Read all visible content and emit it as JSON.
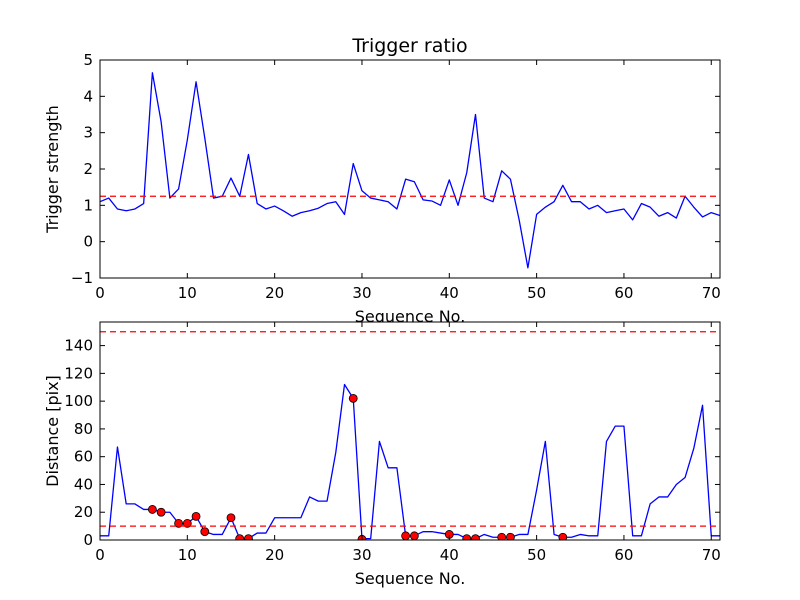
{
  "chart_data": [
    {
      "type": "line",
      "title": "Trigger ratio",
      "xlabel": "Sequence No.",
      "ylabel": "Trigger strength",
      "xlim": [
        0,
        71
      ],
      "ylim": [
        -1,
        5
      ],
      "xticks": [
        0,
        10,
        20,
        30,
        40,
        50,
        60,
        70
      ],
      "yticks": [
        -1,
        0,
        1,
        2,
        3,
        4,
        5
      ],
      "grid": false,
      "series": [
        {
          "color": "#0000ff",
          "style": "solid",
          "x": [
            0,
            1,
            2,
            3,
            4,
            5,
            6,
            7,
            8,
            9,
            10,
            11,
            12,
            13,
            14,
            15,
            16,
            17,
            18,
            19,
            20,
            21,
            22,
            23,
            24,
            25,
            26,
            27,
            28,
            29,
            30,
            31,
            32,
            33,
            34,
            35,
            36,
            37,
            38,
            39,
            40,
            41,
            42,
            43,
            44,
            45,
            46,
            47,
            48,
            49,
            50,
            51,
            52,
            53,
            54,
            55,
            56,
            57,
            58,
            59,
            60,
            61,
            62,
            63,
            64,
            65,
            66,
            67,
            68,
            69,
            70,
            71
          ],
          "values": [
            1.1,
            1.2,
            0.9,
            0.85,
            0.9,
            1.05,
            4.65,
            3.3,
            1.2,
            1.45,
            2.8,
            4.4,
            2.85,
            1.2,
            1.25,
            1.75,
            1.25,
            2.4,
            1.05,
            0.9,
            0.98,
            0.85,
            0.7,
            0.8,
            0.85,
            0.92,
            1.05,
            1.1,
            0.75,
            2.15,
            1.4,
            1.2,
            1.15,
            1.1,
            0.9,
            1.72,
            1.65,
            1.15,
            1.12,
            1.0,
            1.7,
            1.0,
            1.9,
            3.5,
            1.2,
            1.1,
            1.95,
            1.72,
            0.6,
            -0.72,
            0.75,
            0.95,
            1.1,
            1.55,
            1.1,
            1.1,
            0.9,
            1.0,
            0.8,
            0.85,
            0.9,
            0.6,
            1.05,
            0.95,
            0.7,
            0.8,
            0.65,
            1.25,
            0.95,
            0.68,
            0.8,
            0.72
          ]
        },
        {
          "color": "#ff0000",
          "style": "dashed",
          "x": [
            0,
            71
          ],
          "values": [
            1.25,
            1.25
          ]
        }
      ]
    },
    {
      "type": "line",
      "title": "",
      "xlabel": "Sequence No.",
      "ylabel": "Distance [pix]",
      "xlim": [
        0,
        71
      ],
      "ylim": [
        0,
        157
      ],
      "xticks": [
        0,
        10,
        20,
        30,
        40,
        50,
        60,
        70
      ],
      "yticks": [
        0,
        20,
        40,
        60,
        80,
        100,
        120,
        140
      ],
      "grid": false,
      "series": [
        {
          "color": "#0000ff",
          "style": "solid",
          "x": [
            0,
            1,
            2,
            3,
            4,
            5,
            6,
            7,
            8,
            9,
            10,
            11,
            12,
            13,
            14,
            15,
            16,
            17,
            18,
            19,
            20,
            21,
            22,
            23,
            24,
            25,
            26,
            27,
            28,
            29,
            30,
            31,
            32,
            33,
            34,
            35,
            36,
            37,
            38,
            39,
            40,
            41,
            42,
            43,
            44,
            45,
            46,
            47,
            48,
            49,
            50,
            51,
            52,
            53,
            54,
            55,
            56,
            57,
            58,
            59,
            60,
            61,
            62,
            63,
            64,
            65,
            66,
            67,
            68,
            69,
            70,
            71
          ],
          "values": [
            3,
            3,
            67,
            26,
            26,
            22,
            22,
            20,
            20,
            12,
            12,
            17,
            6,
            4,
            4,
            16,
            1,
            1,
            5,
            5,
            16,
            16,
            16,
            16,
            31,
            28,
            28,
            63,
            112,
            102,
            1,
            1,
            71,
            52,
            52,
            3,
            3,
            6,
            6,
            5,
            4,
            4,
            1,
            1,
            4,
            2,
            2,
            2,
            4,
            4,
            36,
            71,
            4,
            2,
            2,
            4,
            3,
            3,
            71,
            82,
            82,
            3,
            3,
            26,
            31,
            31,
            40,
            45,
            66,
            97,
            3,
            3
          ]
        },
        {
          "color": "#ff0000",
          "style": "markers",
          "x": [
            6,
            7,
            9,
            10,
            11,
            12,
            15,
            16,
            17,
            29,
            30,
            35,
            36,
            40,
            42,
            43,
            46,
            47,
            53
          ],
          "values": [
            22,
            20,
            12,
            12,
            17,
            6,
            16,
            1,
            1,
            102,
            0.5,
            3,
            3,
            4,
            1,
            1,
            2,
            2,
            2
          ]
        },
        {
          "color": "#ff0000",
          "style": "dashed",
          "x": [
            0,
            71
          ],
          "values": [
            10,
            10
          ]
        },
        {
          "color": "#ff0000",
          "style": "dashed",
          "x": [
            0,
            71
          ],
          "values": [
            150,
            150
          ]
        }
      ]
    }
  ]
}
